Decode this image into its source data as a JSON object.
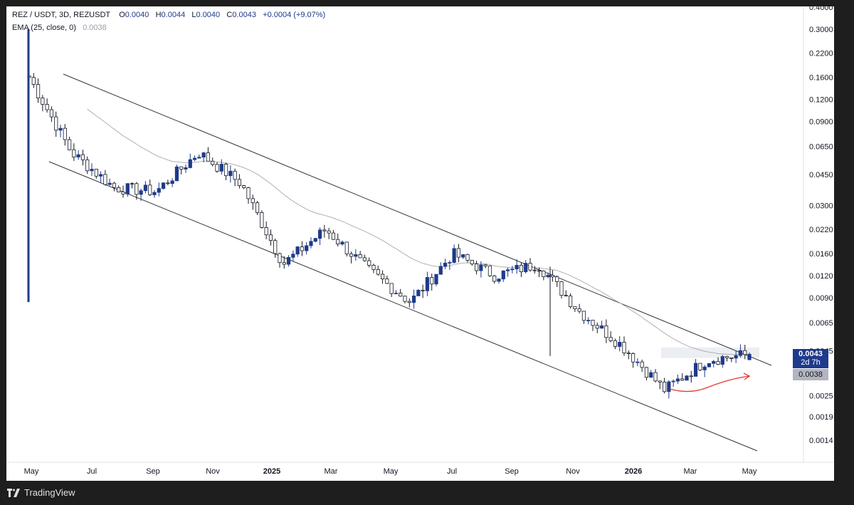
{
  "legend": {
    "symbol": "REZ / USDT, 3D, REZUSDT",
    "o_label": "O",
    "o_value": "0.0040",
    "h_label": "H",
    "h_value": "0.0044",
    "l_label": "L",
    "l_value": "0.0040",
    "c_label": "C",
    "c_value": "0.0043",
    "change": "+0.0004 (+9.07%)",
    "ema_label": "EMA (25, close, 0)",
    "ema_value": "0.0038"
  },
  "price_tags": {
    "last_price": "0.0043",
    "countdown": "2d 7h",
    "ema_price": "0.0038"
  },
  "footer": {
    "brand": "TradingView",
    "logo_icon": "tradingview-logo-icon"
  },
  "colors": {
    "up": "#1e3a8a",
    "down": "#131722",
    "ema": "#b0b0b0",
    "trendline": "#333333",
    "arrow": "#e53935",
    "zone": "#e8ebf0"
  },
  "chart_data": {
    "type": "candlestick",
    "title": "REZ / USDT, 3D, REZUSDT",
    "y_scale": "log",
    "y_ticks": [
      "0.4000",
      "0.3000",
      "0.2200",
      "0.1600",
      "0.1200",
      "0.0900",
      "0.0650",
      "0.0450",
      "0.0300",
      "0.0220",
      "0.0160",
      "0.0120",
      "0.0090",
      "0.0065",
      "0.0045",
      "0.0038",
      "0.0025",
      "0.0019",
      "0.0014"
    ],
    "x_ticks": [
      "May",
      "Jul",
      "Sep",
      "Nov",
      "2025",
      "Mar",
      "May",
      "Jul",
      "Sep",
      "Nov",
      "2026",
      "Mar",
      "May"
    ],
    "series": [
      {
        "name": "EMA (25, close, 0)",
        "last": 0.0038
      }
    ],
    "close_path": [
      [
        "May",
        0.16
      ],
      [
        "Jul",
        0.06
      ],
      [
        "Sep",
        0.038
      ],
      [
        "Nov",
        0.036
      ],
      [
        "Dec",
        0.06
      ],
      [
        "2025",
        0.04
      ],
      [
        "Feb",
        0.014
      ],
      [
        "Mar",
        0.022
      ],
      [
        "May",
        0.013
      ],
      [
        "Jul",
        0.0085
      ],
      [
        "Aug",
        0.016
      ],
      [
        "Sep",
        0.012
      ],
      [
        "Oct",
        0.014
      ],
      [
        "Nov",
        0.0075
      ],
      [
        "2026",
        0.0048
      ],
      [
        "Mar",
        0.0027
      ],
      [
        "Apr",
        0.004
      ],
      [
        "May",
        0.0043
      ]
    ],
    "last": {
      "open": 0.004,
      "high": 0.0044,
      "low": 0.004,
      "close": 0.0043,
      "change": 0.0004,
      "change_pct": 9.07
    },
    "annotations": [
      "descending channel upper trendline",
      "descending channel lower trendline",
      "resistance zone",
      "rounded bottom arrow"
    ]
  }
}
